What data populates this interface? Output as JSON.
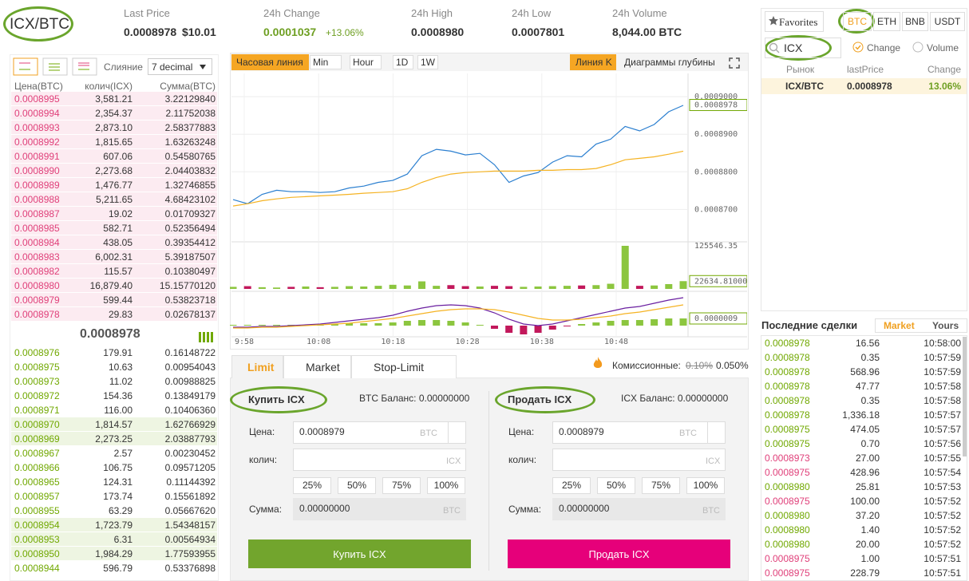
{
  "header": {
    "pair": "ICX/BTC",
    "stats": [
      {
        "label": "Last Price",
        "value": "0.0008978",
        "sub": "$10.01"
      },
      {
        "label": "24h Change",
        "value": "0.0001037",
        "sub": "+13.06%"
      },
      {
        "label": "24h High",
        "value": "0.0008980"
      },
      {
        "label": "24h Low",
        "value": "0.0007801"
      },
      {
        "label": "24h Volume",
        "value": "8,044.00 BTC"
      }
    ]
  },
  "orderbook": {
    "merge_label": "Слияние",
    "decimals": "7 decimal",
    "columns": [
      "Цена(BTC)",
      "колич(ICX)",
      "Сумма(BTC)"
    ],
    "asks": [
      [
        "0.0008995",
        "3,581.21",
        "3.22129840"
      ],
      [
        "0.0008994",
        "2,354.37",
        "2.11752038"
      ],
      [
        "0.0008993",
        "2,873.10",
        "2.58377883"
      ],
      [
        "0.0008992",
        "1,815.65",
        "1.63263248"
      ],
      [
        "0.0008991",
        "607.06",
        "0.54580765"
      ],
      [
        "0.0008990",
        "2,273.68",
        "2.04403832"
      ],
      [
        "0.0008989",
        "1,476.77",
        "1.32746855"
      ],
      [
        "0.0008988",
        "5,211.65",
        "4.68423102"
      ],
      [
        "0.0008987",
        "19.02",
        "0.01709327"
      ],
      [
        "0.0008985",
        "582.71",
        "0.52356494"
      ],
      [
        "0.0008984",
        "438.05",
        "0.39354412"
      ],
      [
        "0.0008983",
        "6,002.31",
        "5.39187507"
      ],
      [
        "0.0008982",
        "115.57",
        "0.10380497"
      ],
      [
        "0.0008980",
        "16,879.40",
        "15.15770120"
      ],
      [
        "0.0008979",
        "599.44",
        "0.53823718"
      ],
      [
        "0.0008978",
        "29.83",
        "0.02678137"
      ]
    ],
    "last_price": "0.0008978",
    "bids": [
      [
        "0.0008976",
        "179.91",
        "0.16148722"
      ],
      [
        "0.0008975",
        "10.63",
        "0.00954043"
      ],
      [
        "0.0008973",
        "11.02",
        "0.00988825"
      ],
      [
        "0.0008972",
        "154.36",
        "0.13849179"
      ],
      [
        "0.0008971",
        "116.00",
        "0.10406360"
      ],
      [
        "0.0008970",
        "1,814.57",
        "1.62766929"
      ],
      [
        "0.0008969",
        "2,273.25",
        "2.03887793"
      ],
      [
        "0.0008967",
        "2.57",
        "0.00230452"
      ],
      [
        "0.0008966",
        "106.75",
        "0.09571205"
      ],
      [
        "0.0008965",
        "124.31",
        "0.11144392"
      ],
      [
        "0.0008957",
        "173.74",
        "0.15561892"
      ],
      [
        "0.0008955",
        "63.29",
        "0.05667620"
      ],
      [
        "0.0008954",
        "1,723.79",
        "1.54348157"
      ],
      [
        "0.0008953",
        "6.31",
        "0.00564934"
      ],
      [
        "0.0008950",
        "1,984.29",
        "1.77593955"
      ],
      [
        "0.0008944",
        "596.79",
        "0.53376898"
      ]
    ]
  },
  "chart_data": {
    "type": "line",
    "toolbar": [
      "Часовая линия",
      "Min",
      "Hour",
      "1D",
      "1W"
    ],
    "views": [
      "Линия K",
      "Диаграммы глубины"
    ],
    "ylim": [
      0.000862,
      0.0009045
    ],
    "yticks": [
      {
        "value": 0.00087,
        "label": "0.0008700"
      },
      {
        "value": 0.00088,
        "label": "0.0008800"
      },
      {
        "value": 0.00089,
        "label": "0.0008900"
      },
      {
        "value": 0.0009,
        "label": "0.0009000"
      }
    ],
    "grid": true,
    "series": [
      {
        "color": "#2b7fd0",
        "values": [
          0.0008726,
          0.0008715,
          0.000874,
          0.0008751,
          0.0008747,
          0.0008747,
          0.0008745,
          0.0008747,
          0.0008757,
          0.0008762,
          0.0008772,
          0.0008777,
          0.0008794,
          0.0008843,
          0.000886,
          0.0008855,
          0.0008845,
          0.0008849,
          0.0008819,
          0.0008772,
          0.0008789,
          0.0008798,
          0.0008826,
          0.0008843,
          0.000884,
          0.0008874,
          0.0008887,
          0.0008921,
          0.0008909,
          0.0008926,
          0.000896,
          0.0008977
        ]
      },
      {
        "color": "#f5b323",
        "values": [
          0.0008709,
          0.0008715,
          0.0008723,
          0.0008728,
          0.0008732,
          0.0008734,
          0.0008736,
          0.0008738,
          0.000874,
          0.0008743,
          0.0008745,
          0.0008747,
          0.0008755,
          0.0008772,
          0.0008785,
          0.0008794,
          0.0008798,
          0.00088,
          0.0008802,
          0.0008802,
          0.0008802,
          0.0008804,
          0.0008804,
          0.0008806,
          0.0008806,
          0.0008809,
          0.0008819,
          0.0008832,
          0.0008836,
          0.000884,
          0.0008847,
          0.0008855
        ]
      }
    ],
    "price_marker": {
      "value": 0.0008978,
      "label": "0.0008978"
    },
    "volume": {
      "ylim": [
        0,
        125546.35
      ],
      "yticks": [
        125546.35
      ],
      "marker": {
        "value": 22634.81,
        "label": "22634.81000"
      },
      "values": [
        6000,
        8000,
        5000,
        4000,
        6000,
        7000,
        5000,
        6000,
        8000,
        7000,
        9000,
        12000,
        10000,
        22000,
        9000,
        11000,
        8000,
        7000,
        9000,
        8000,
        6000,
        7000,
        8000,
        9000,
        10000,
        11000,
        15000,
        125546.35,
        9000,
        10000,
        14000,
        22634.81
      ]
    },
    "macd": {
      "ylim": [
        -1.2e-06,
        4e-06
      ],
      "marker": {
        "value": 9e-07,
        "label": "0.0000009"
      },
      "series": [
        {
          "color": "#6a1fa0",
          "values": [
            -2e-07,
            -2e-07,
            -1e-07,
            -1e-07,
            0,
            1e-07,
            2e-07,
            4e-07,
            6e-07,
            8e-07,
            1e-06,
            1.3e-06,
            1.8e-06,
            2.2e-06,
            2.5e-06,
            2.6e-06,
            2.5e-06,
            2.2e-06,
            1.6e-06,
            8e-07,
            2e-07,
            0,
            2e-07,
            6e-07,
            1e-06,
            1.4e-06,
            1.8e-06,
            2.2e-06,
            2.4e-06,
            2.8e-06,
            3.2e-06,
            3.5e-06
          ]
        },
        {
          "color": "#f5b323",
          "values": [
            -3e-07,
            -3e-07,
            -2e-07,
            -2e-07,
            -1e-07,
            0,
            1e-07,
            2e-07,
            3e-07,
            5e-07,
            7e-07,
            9e-07,
            1.2e-06,
            1.5e-06,
            1.8e-06,
            2e-06,
            2.1e-06,
            2.1e-06,
            2e-06,
            1.7e-06,
            1.3e-06,
            9e-07,
            7e-07,
            7e-07,
            8e-07,
            1e-06,
            1.2e-06,
            1.5e-06,
            1.7e-06,
            2e-06,
            2.3e-06,
            2.6e-06
          ]
        }
      ],
      "hist": [
        1e-07,
        1e-07,
        1e-07,
        1e-07,
        1e-07,
        1e-07,
        1e-07,
        2e-07,
        3e-07,
        3e-07,
        3e-07,
        4e-07,
        6e-07,
        7e-07,
        7e-07,
        6e-07,
        4e-07,
        1e-07,
        -4e-07,
        -9e-07,
        -1.1e-06,
        -9e-07,
        -5e-07,
        -1e-07,
        2e-07,
        4e-07,
        6e-07,
        7e-07,
        7e-07,
        8e-07,
        9e-07,
        9e-07
      ]
    },
    "time_labels": [
      "9:58",
      "10:08",
      "10:18",
      "10:28",
      "10:38",
      "10:48"
    ]
  },
  "trade_form": {
    "tabs": [
      "Limit",
      "Market",
      "Stop-Limit"
    ],
    "fee_label": "Комиссионные:",
    "fee_old": "0.10%",
    "fee_new": "0.050%",
    "panels": [
      {
        "title": "Купить ICX",
        "balance": "BTC Баланс: 0.00000000",
        "price_label": "Цена:",
        "price": "0.0008979",
        "price_unit": "BTC",
        "amount_label": "колич:",
        "amount_unit": "ICX",
        "percents": [
          "25%",
          "50%",
          "75%",
          "100%"
        ],
        "total_label": "Сумма:",
        "total": "0.00000000",
        "total_unit": "BTC",
        "button": "Купить ICX"
      },
      {
        "title": "Продать ICX",
        "balance": "ICX Баланс: 0.00000000",
        "price_label": "Цена:",
        "price": "0.0008979",
        "price_unit": "BTC",
        "amount_label": "колич:",
        "amount_unit": "ICX",
        "percents": [
          "25%",
          "50%",
          "75%",
          "100%"
        ],
        "total_label": "Сумма:",
        "total": "0.00000000",
        "total_unit": "BTC",
        "button": "Продать ICX"
      }
    ]
  },
  "markets": {
    "favorites": "Favorites",
    "quotes": [
      "BTC",
      "ETH",
      "BNB",
      "USDT"
    ],
    "search": "ICX",
    "sort_options": [
      "Change",
      "Volume"
    ],
    "columns": [
      "Рынок",
      "lastPrice",
      "Change"
    ],
    "rows": [
      {
        "pair": "ICX/BTC",
        "price": "0.0008978",
        "change": "13.06%"
      }
    ]
  },
  "trades": {
    "title": "Последние сделки",
    "tabs": [
      "Market",
      "Yours"
    ],
    "rows": [
      {
        "price": "0.0008978",
        "amount": "16.56",
        "time": "10:58:00",
        "side": "buy"
      },
      {
        "price": "0.0008978",
        "amount": "0.35",
        "time": "10:57:59",
        "side": "buy"
      },
      {
        "price": "0.0008978",
        "amount": "568.96",
        "time": "10:57:59",
        "side": "buy"
      },
      {
        "price": "0.0008978",
        "amount": "47.77",
        "time": "10:57:58",
        "side": "buy"
      },
      {
        "price": "0.0008978",
        "amount": "0.35",
        "time": "10:57:58",
        "side": "buy"
      },
      {
        "price": "0.0008978",
        "amount": "1,336.18",
        "time": "10:57:57",
        "side": "buy"
      },
      {
        "price": "0.0008975",
        "amount": "474.05",
        "time": "10:57:57",
        "side": "buy"
      },
      {
        "price": "0.0008975",
        "amount": "0.70",
        "time": "10:57:56",
        "side": "buy"
      },
      {
        "price": "0.0008973",
        "amount": "27.00",
        "time": "10:57:55",
        "side": "sell"
      },
      {
        "price": "0.0008975",
        "amount": "428.96",
        "time": "10:57:54",
        "side": "sell"
      },
      {
        "price": "0.0008980",
        "amount": "25.81",
        "time": "10:57:53",
        "side": "buy"
      },
      {
        "price": "0.0008975",
        "amount": "100.00",
        "time": "10:57:52",
        "side": "sell"
      },
      {
        "price": "0.0008980",
        "amount": "37.20",
        "time": "10:57:52",
        "side": "buy"
      },
      {
        "price": "0.0008980",
        "amount": "1.40",
        "time": "10:57:52",
        "side": "buy"
      },
      {
        "price": "0.0008980",
        "amount": "20.00",
        "time": "10:57:52",
        "side": "buy"
      },
      {
        "price": "0.0008975",
        "amount": "1.00",
        "time": "10:57:51",
        "side": "sell"
      },
      {
        "price": "0.0008975",
        "amount": "228.79",
        "time": "10:57:51",
        "side": "sell"
      }
    ]
  }
}
